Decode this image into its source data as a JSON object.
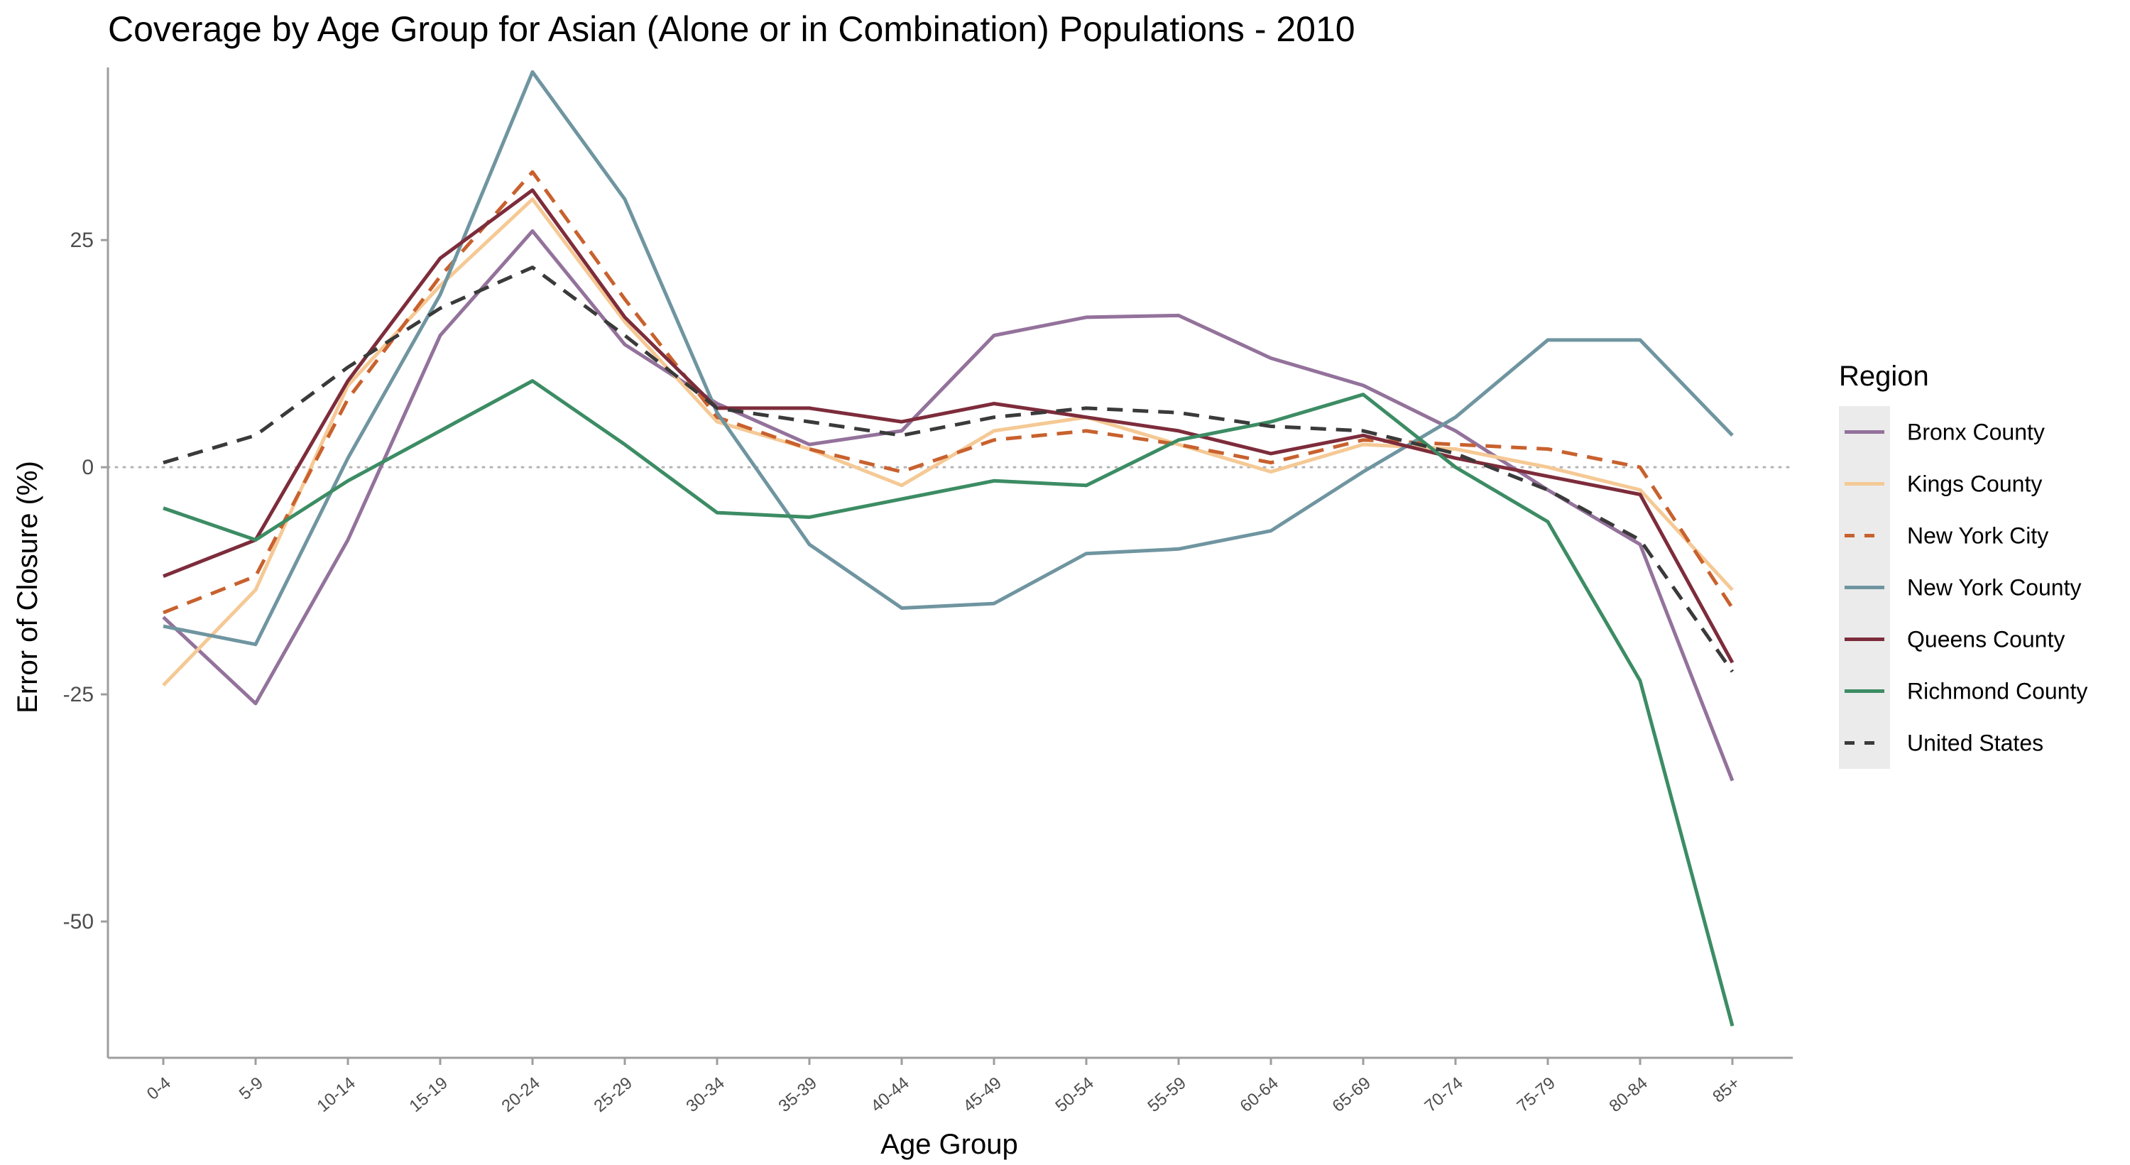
{
  "chart_data": {
    "type": "line",
    "title": "Coverage by Age Group for Asian (Alone or in Combination) Populations - 2010",
    "xlabel": "Age Group",
    "ylabel": "Error of Closure (%)",
    "categories": [
      "0-4",
      "5-9",
      "10-14",
      "15-19",
      "20-24",
      "25-29",
      "30-34",
      "35-39",
      "40-44",
      "45-49",
      "50-54",
      "55-59",
      "60-64",
      "65-69",
      "70-74",
      "75-79",
      "80-84",
      "85+"
    ],
    "ylim": [
      -65,
      44
    ],
    "yticks": [
      -50,
      -25,
      0,
      25
    ],
    "ytick_labels": [
      "-50",
      "-25",
      "0",
      "25"
    ],
    "reference_line": {
      "y": 0,
      "style": "dotted",
      "color": "#b3b3b3"
    },
    "grid": false,
    "legend": {
      "title": "Region",
      "position": "right"
    },
    "series": [
      {
        "name": "Bronx County",
        "color": "#93729b",
        "dash": "solid",
        "values": [
          -16.5,
          -26.0,
          -8.0,
          14.5,
          26.0,
          13.5,
          7.0,
          2.5,
          4.0,
          14.5,
          16.5,
          16.7,
          12.0,
          9.0,
          4.0,
          -2.5,
          -8.5,
          -34.5
        ]
      },
      {
        "name": "Kings County",
        "color": "#f5c995",
        "dash": "solid",
        "values": [
          -24.0,
          -13.5,
          9.0,
          20.0,
          29.5,
          16.0,
          5.0,
          2.0,
          -2.0,
          4.0,
          5.5,
          2.5,
          -0.5,
          2.5,
          2.0,
          0.0,
          -2.5,
          -13.5
        ]
      },
      {
        "name": "New York City",
        "color": "#c8612e",
        "dash": "dashed",
        "values": [
          -16.0,
          -12.0,
          7.5,
          21.0,
          32.5,
          18.5,
          5.5,
          2.0,
          -0.5,
          3.0,
          4.0,
          2.5,
          0.5,
          3.0,
          2.5,
          2.0,
          0.0,
          -15.5
        ]
      },
      {
        "name": "New York County",
        "color": "#6f95a0",
        "dash": "solid",
        "values": [
          -17.5,
          -19.5,
          1.0,
          19.0,
          43.5,
          29.5,
          6.0,
          -8.5,
          -15.5,
          -15.0,
          -9.5,
          -9.0,
          -7.0,
          -0.5,
          5.5,
          14.0,
          14.0,
          3.5
        ]
      },
      {
        "name": "Queens County",
        "color": "#7d2c3b",
        "dash": "solid",
        "values": [
          -12.0,
          -8.0,
          9.5,
          23.0,
          30.5,
          16.5,
          6.5,
          6.5,
          5.0,
          7.0,
          5.5,
          4.0,
          1.5,
          3.5,
          1.0,
          -1.0,
          -3.0,
          -21.5
        ]
      },
      {
        "name": "Richmond County",
        "color": "#3c8c64",
        "dash": "solid",
        "values": [
          -4.5,
          -8.0,
          -1.5,
          4.0,
          9.5,
          2.5,
          -5.0,
          -5.5,
          -3.5,
          -1.5,
          -2.0,
          3.0,
          5.0,
          8.0,
          0.0,
          -6.0,
          -23.5,
          -61.5
        ]
      },
      {
        "name": "United States",
        "color": "#3a3a3a",
        "dash": "dashed",
        "values": [
          0.5,
          3.5,
          11.0,
          17.5,
          22.0,
          14.5,
          6.5,
          5.0,
          3.5,
          5.5,
          6.5,
          6.0,
          4.5,
          4.0,
          1.5,
          -2.5,
          -8.0,
          -22.5
        ]
      }
    ]
  }
}
